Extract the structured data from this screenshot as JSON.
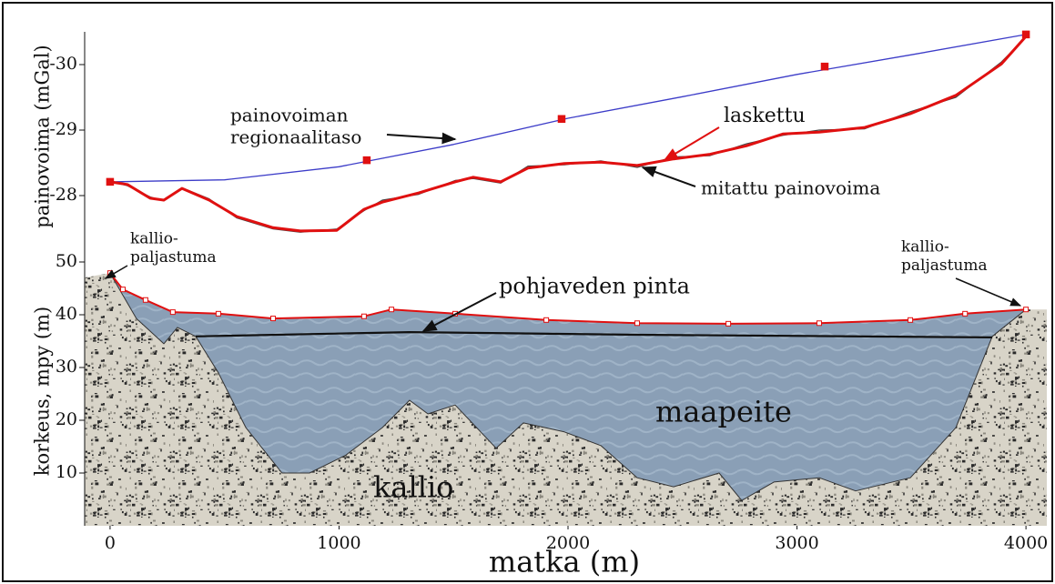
{
  "chart_data": [
    {
      "type": "line",
      "ylabel": "painovoima (mGal)",
      "xlim": [
        -111,
        4091
      ],
      "ylim": [
        -27.4,
        -30.5
      ],
      "yticks": [
        -28,
        -29,
        -30
      ],
      "series": [
        {
          "color": "#3c3cc8",
          "x": [
            0,
            500,
            1000,
            1500,
            2000,
            2500,
            3000,
            3500,
            4000
          ],
          "values": [
            -28.21,
            -28.24,
            -28.44,
            -28.78,
            -29.18,
            -29.51,
            -29.85,
            -30.15,
            -30.46
          ]
        },
        {
          "color": "#e01010",
          "marker": "square",
          "x": [
            0,
            1121,
            1972,
            3121,
            4000
          ],
          "values": [
            -28.21,
            -28.54,
            -29.17,
            -29.97,
            -30.46
          ]
        },
        {
          "name": "mitattu painovoima",
          "color": "#444444",
          "x": [
            0,
            76,
            175,
            235,
            314,
            433,
            553,
            712,
            831,
            990,
            1109,
            1189,
            1348,
            1507,
            1586,
            1706,
            1825,
            1984,
            2143,
            2302,
            2461,
            2620,
            2779,
            2938,
            3097,
            3296,
            3495,
            3694,
            3893,
            4000
          ],
          "values": [
            -28.22,
            -28.15,
            -27.98,
            -27.92,
            -28.12,
            -27.95,
            -27.66,
            -27.49,
            -27.44,
            -27.49,
            -27.77,
            -27.93,
            -28.02,
            -28.23,
            -28.26,
            -28.19,
            -28.45,
            -28.47,
            -28.53,
            -28.43,
            -28.59,
            -28.61,
            -28.79,
            -28.92,
            -29.0,
            -29.02,
            -29.28,
            -29.5,
            -30.04,
            -30.42
          ]
        },
        {
          "name": "laskettu",
          "color": "#e01010",
          "x": [
            0,
            76,
            175,
            235,
            314,
            433,
            553,
            712,
            831,
            990,
            1109,
            1189,
            1348,
            1507,
            1586,
            1706,
            1825,
            1984,
            2143,
            2302,
            2461,
            2620,
            2779,
            2938,
            3097,
            3296,
            3495,
            3694,
            3893,
            4000
          ],
          "values": [
            -28.21,
            -28.17,
            -27.96,
            -27.93,
            -28.11,
            -27.93,
            -27.68,
            -27.51,
            -27.46,
            -27.47,
            -27.79,
            -27.9,
            -28.04,
            -28.21,
            -28.28,
            -28.21,
            -28.42,
            -28.49,
            -28.51,
            -28.46,
            -28.56,
            -28.63,
            -28.76,
            -28.94,
            -28.97,
            -29.04,
            -29.25,
            -29.53,
            -30.01,
            -30.43
          ]
        }
      ],
      "annotations": [
        {
          "lines": [
            "painovoiman",
            "regionaalitaso"
          ]
        }
      ]
    },
    {
      "type": "area",
      "ylabel": "korkeus, mpy (m)",
      "xlabel": "matka (m)",
      "xlim": [
        -111,
        4091
      ],
      "xticks": [
        0,
        1000,
        2000,
        3000,
        4000
      ],
      "ylim": [
        0,
        52
      ],
      "yticks": [
        10,
        20,
        30,
        40,
        50
      ],
      "series": [
        {
          "color": "#e01010",
          "marker": "square",
          "x": [
            0,
            56,
            155,
            274,
            473,
            712,
            1109,
            1229,
            1507,
            1905,
            2302,
            2700,
            3097,
            3495,
            3734,
            4000
          ],
          "values": [
            47.9,
            44.8,
            42.8,
            40.5,
            40.2,
            39.3,
            39.7,
            41.0,
            40.2,
            39.0,
            38.4,
            38.3,
            38.4,
            39.0,
            40.2,
            41.0
          ]
        },
        {
          "name": "pohjaveden pinta",
          "color": "#111111",
          "x": [
            374,
            1308,
            2302,
            3853
          ],
          "values": [
            35.9,
            36.7,
            36.2,
            35.7
          ]
        },
        {
          "color": "#333333",
          "x": [
            0,
            115,
            235,
            294,
            374,
            473,
            593,
            751,
            871,
            1030,
            1189,
            1308,
            1388,
            1507,
            1686,
            1805,
            1984,
            2143,
            2302,
            2461,
            2660,
            2759,
            2899,
            3097,
            3256,
            3495,
            3694,
            3853,
            4000
          ],
          "values": [
            47.9,
            39.3,
            34.5,
            37.6,
            35.9,
            29.0,
            18.6,
            10.0,
            10.0,
            13.4,
            18.6,
            23.8,
            21.2,
            22.9,
            14.7,
            19.5,
            17.8,
            15.2,
            9.1,
            7.4,
            10.0,
            4.8,
            8.3,
            9.1,
            6.6,
            9.1,
            18.6,
            35.9,
            41.0
          ]
        }
      ],
      "annotations": [
        {
          "lines": [
            "kallio-",
            "paljastuma"
          ]
        },
        {
          "lines": [
            "kallio-",
            "paljastuma"
          ]
        },
        {
          "lines": [
            "maapeite"
          ]
        },
        {
          "lines": [
            "kallio"
          ]
        }
      ]
    }
  ]
}
